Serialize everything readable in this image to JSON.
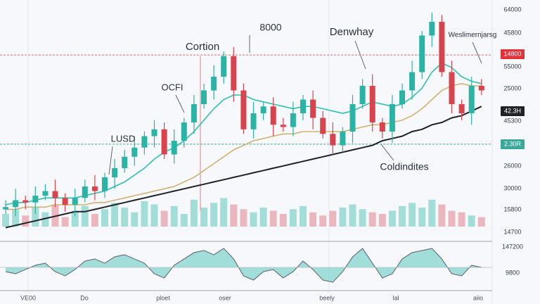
{
  "chart_data": {
    "type": "candlestick",
    "ylim": [
      0,
      100
    ],
    "open": [
      10,
      11,
      14,
      13,
      16,
      18,
      15,
      12,
      15,
      20,
      18,
      24,
      28,
      33,
      37,
      42,
      45,
      34,
      40,
      48,
      56,
      62,
      68,
      77,
      62,
      45,
      52,
      55,
      47,
      46,
      52,
      58,
      50,
      43,
      38,
      44,
      56,
      64,
      48,
      44,
      56,
      62,
      70,
      86,
      92,
      70,
      56,
      52,
      64
    ],
    "high": [
      14,
      19,
      16,
      20,
      21,
      23,
      17,
      19,
      23,
      25,
      26,
      32,
      36,
      42,
      44,
      49,
      48,
      45,
      50,
      60,
      65,
      73,
      79,
      81,
      65,
      57,
      57,
      59,
      50,
      57,
      60,
      62,
      53,
      48,
      46,
      60,
      67,
      69,
      50,
      60,
      65,
      75,
      88,
      96,
      95,
      75,
      58,
      68,
      67
    ],
    "low": [
      8,
      7,
      10,
      8,
      14,
      11,
      9,
      7,
      13,
      14,
      15,
      19,
      26,
      29,
      34,
      37,
      32,
      30,
      37,
      43,
      54,
      58,
      65,
      57,
      43,
      41,
      49,
      42,
      44,
      42,
      49,
      45,
      41,
      34,
      35,
      39,
      54,
      44,
      41,
      39,
      54,
      58,
      67,
      81,
      68,
      52,
      49,
      47,
      60
    ],
    "close": [
      11,
      14,
      13,
      16,
      18,
      15,
      12,
      15,
      20,
      18,
      24,
      28,
      33,
      37,
      42,
      45,
      34,
      40,
      48,
      56,
      62,
      68,
      77,
      62,
      45,
      52,
      55,
      47,
      46,
      52,
      58,
      50,
      43,
      38,
      44,
      56,
      64,
      48,
      44,
      56,
      62,
      70,
      86,
      92,
      70,
      56,
      52,
      64,
      62
    ],
    "up_color": "#2bb3a6",
    "down_color": "#d8434c",
    "series": [
      {
        "color": "#1f2328",
        "values": [
          2,
          3,
          4,
          5,
          6,
          7,
          8,
          9,
          9,
          10,
          11,
          12,
          13,
          14,
          15,
          16,
          17,
          18,
          19,
          20,
          21,
          22,
          23,
          24,
          25,
          26,
          27,
          28,
          29,
          30,
          31,
          32,
          33,
          34,
          35,
          36,
          37,
          38,
          40,
          41,
          42,
          44,
          45,
          47,
          48,
          50,
          51,
          53,
          55
        ]
      },
      {
        "color": "#2fbfae",
        "values": [
          12,
          13,
          13,
          14,
          15,
          15,
          15,
          15,
          16,
          17,
          18,
          20,
          22,
          25,
          28,
          32,
          35,
          37,
          40,
          44,
          49,
          54,
          58,
          60,
          60,
          58,
          57,
          56,
          55,
          54,
          55,
          55,
          54,
          53,
          52,
          53,
          55,
          57,
          56,
          55,
          56,
          59,
          63,
          70,
          74,
          72,
          68,
          66,
          65
        ]
      },
      {
        "color": "#cfb273",
        "values": [
          10,
          10,
          11,
          11,
          11,
          12,
          12,
          12,
          12,
          13,
          13,
          14,
          15,
          16,
          17,
          18,
          19,
          20,
          22,
          24,
          27,
          30,
          33,
          36,
          38,
          40,
          41,
          42,
          43,
          43,
          44,
          44,
          44,
          44,
          44,
          45,
          46,
          47,
          47,
          48,
          49,
          51,
          54,
          58,
          62,
          64,
          65,
          64,
          64
        ]
      }
    ],
    "reference_lines": [
      {
        "value": 77.5,
        "color": "#e06a6a"
      },
      {
        "value": 38.5,
        "color": "#3aa99a"
      }
    ],
    "volume": {
      "ylim": [
        0,
        100
      ],
      "values": [
        40,
        55,
        35,
        60,
        45,
        70,
        30,
        50,
        65,
        40,
        55,
        75,
        60,
        45,
        80,
        70,
        50,
        65,
        40,
        85,
        60,
        75,
        90,
        70,
        55,
        45,
        60,
        50,
        40,
        55,
        65,
        45,
        35,
        50,
        60,
        70,
        55,
        45,
        40,
        50,
        65,
        75,
        60,
        85,
        70,
        50,
        45,
        35,
        30
      ]
    },
    "oscillator": {
      "ylim": [
        -50,
        50
      ],
      "color": "#5cc9be",
      "values": [
        -10,
        -15,
        -5,
        5,
        10,
        -10,
        -20,
        -5,
        15,
        20,
        10,
        25,
        30,
        20,
        10,
        -15,
        -25,
        5,
        20,
        35,
        40,
        30,
        45,
        20,
        -20,
        -30,
        -10,
        -5,
        -25,
        -10,
        15,
        -5,
        -30,
        -35,
        -10,
        25,
        45,
        10,
        -25,
        -15,
        20,
        35,
        40,
        45,
        20,
        -15,
        -20,
        5,
        0
      ]
    },
    "annotations": [
      "Cortion",
      "8000",
      "Denwhay",
      "OCFI",
      "LUSD",
      "Coldindites",
      "Weslimernjarsg"
    ],
    "price_labels": [
      {
        "text": "64000"
      },
      {
        "text": "45800"
      },
      {
        "text": "14800",
        "badge": "#e0343c"
      },
      {
        "text": "55000"
      },
      {
        "text": "25000"
      },
      {
        "text": "42.3H",
        "badge": "#1f2328"
      },
      {
        "text": "45300"
      },
      {
        "text": "2.30R",
        "badge": "#3aa99a"
      },
      {
        "text": "26000"
      },
      {
        "text": "30000"
      },
      {
        "text": "15800"
      },
      {
        "text": "14700"
      },
      {
        "text": "147200"
      },
      {
        "text": "9800"
      }
    ],
    "x_labels": [
      "VE00",
      "Do",
      "ploet",
      "oser",
      "beely",
      "lal",
      "aiio"
    ]
  }
}
